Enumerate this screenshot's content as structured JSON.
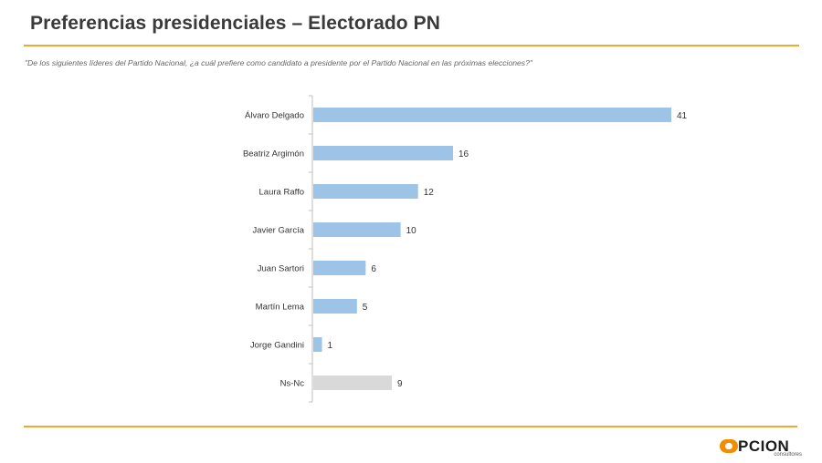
{
  "header": {
    "title": "Preferencias presidenciales – Electorado PN",
    "question": "\"De los siguientes líderes del Partido Nacional, ¿a cuál prefiere como candidato a presidente por el Partido Nacional en las próximas elecciones?\""
  },
  "colors": {
    "accent": "#f0a830",
    "bar": "#9dc3e6",
    "bar_nsnc": "#d9d9d9",
    "logo": "#f28c00"
  },
  "logo": {
    "text": "PCION",
    "subtext": "consultores"
  },
  "chart_data": {
    "type": "bar",
    "orientation": "horizontal",
    "categories": [
      "Álvaro Delgado",
      "Beatriz Argimón",
      "Laura Raffo",
      "Javier García",
      "Juan Sartori",
      "Martín Lema",
      "Jorge Gandini",
      "Ns-Nc"
    ],
    "values": [
      41,
      16,
      12,
      10,
      6,
      5,
      1,
      9
    ],
    "xlim": [
      0,
      41
    ],
    "grid": false,
    "legend": "none"
  }
}
